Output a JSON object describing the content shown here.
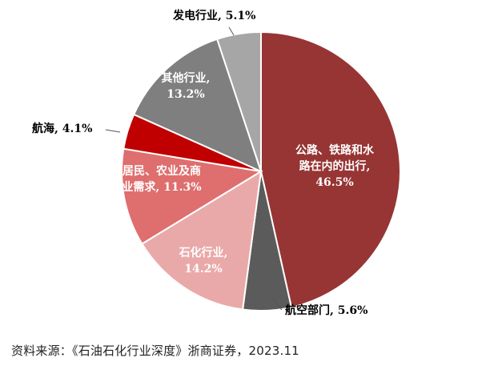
{
  "chart_data": {
    "type": "pie",
    "title": "",
    "start": "12 o'clock",
    "direction": "clockwise",
    "slices": [
      {
        "label": [
          "公路、铁路和水",
          "路在内的出行,",
          "46.5%"
        ],
        "value": 46.5,
        "color": "#963534",
        "text_color": "#ffffff"
      },
      {
        "label": [
          "航空部门, 5.6%"
        ],
        "value": 5.6,
        "color": "#5b5b5b",
        "text_color": "#000000"
      },
      {
        "label": [
          "石化行业,",
          "14.2%"
        ],
        "value": 14.2,
        "color": "#eaa9a9",
        "text_color": "#ffffff"
      },
      {
        "label": [
          "居民、农业及商",
          "业需求, 11.3%"
        ],
        "value": 11.3,
        "color": "#df6e6e",
        "text_color": "#ffffff"
      },
      {
        "label": [
          "航海, 4.1%"
        ],
        "value": 4.1,
        "color": "#c00000",
        "text_color": "#000000"
      },
      {
        "label": [
          "其他行业,",
          "13.2%"
        ],
        "value": 13.2,
        "color": "#7f7f7f",
        "text_color": "#ffffff"
      },
      {
        "label": [
          "发电行业, 5.1%"
        ],
        "value": 5.1,
        "color": "#a6a6a6",
        "text_color": "#000000"
      }
    ]
  },
  "source": "资料来源：《石油石化行业深度》浙商证券，2023.11"
}
